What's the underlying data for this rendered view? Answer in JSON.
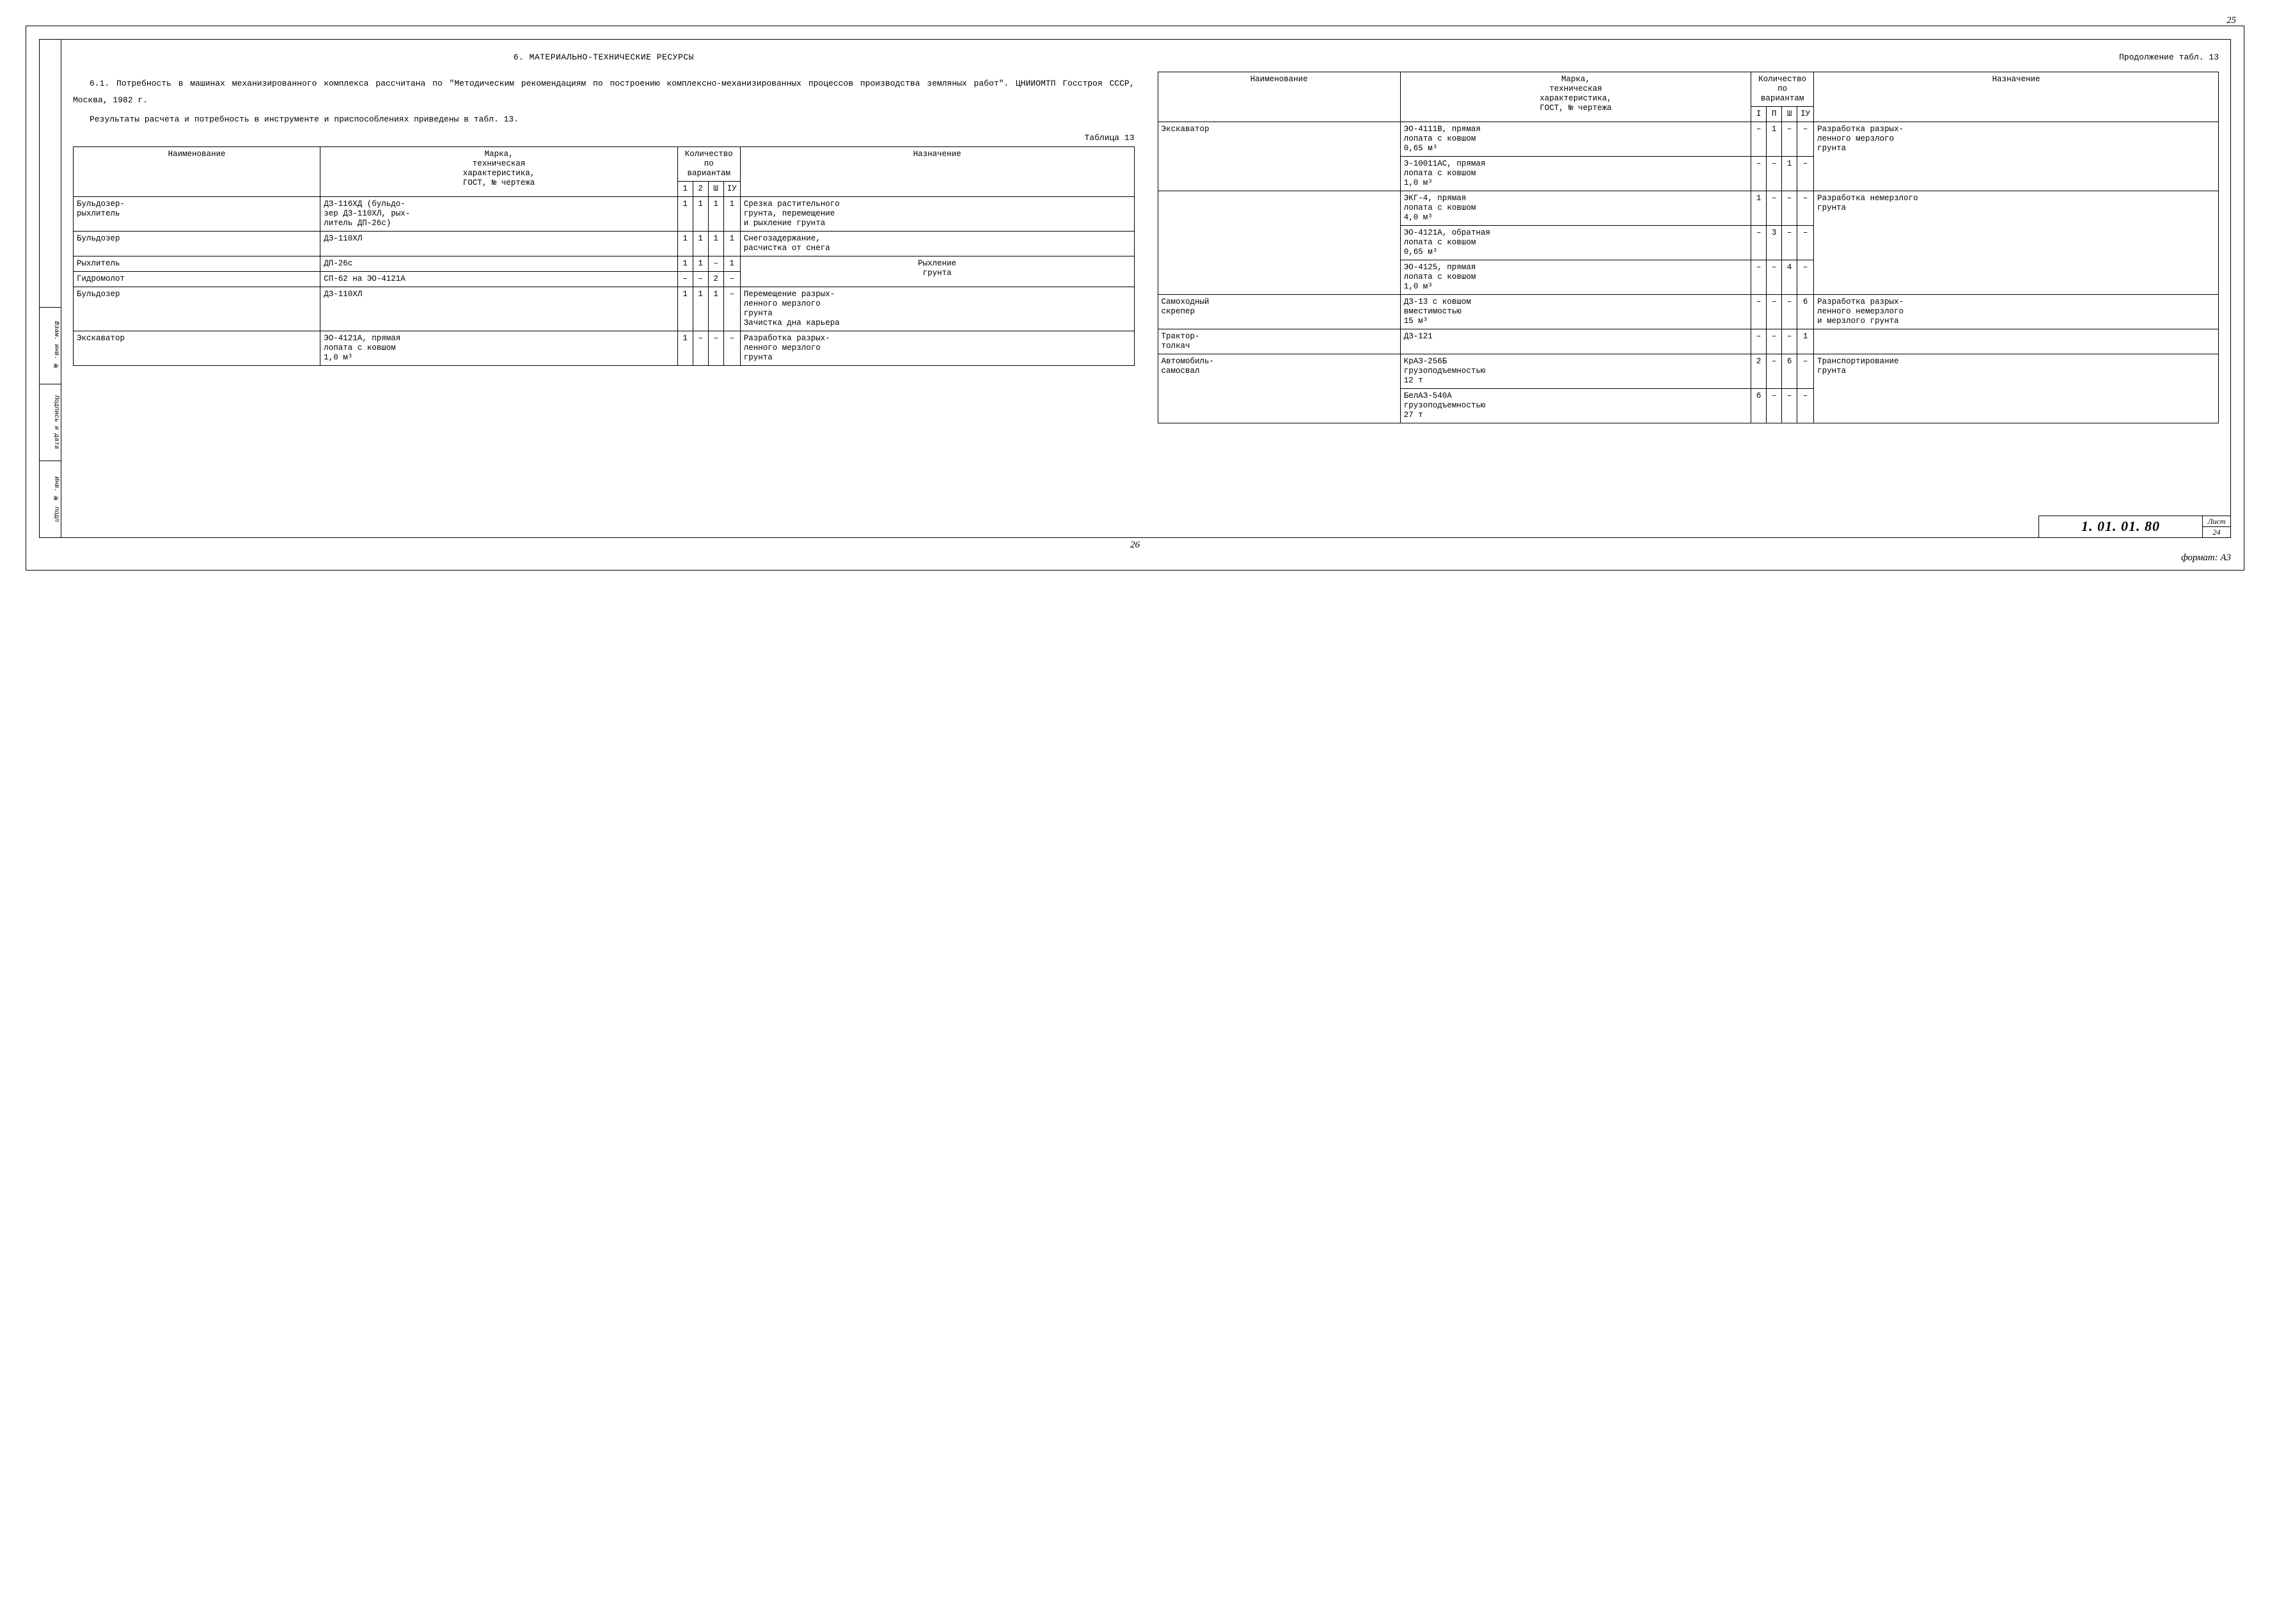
{
  "meta": {
    "page_top": "25",
    "page_bottom_center": "26",
    "format_label": "формат: А3",
    "doc_code": "1. 01. 01. 80",
    "sheet_label": "Лист",
    "sheet_num": "24"
  },
  "side_cells": [
    "Взам. инв. №",
    "Подпись и дата",
    "Инв. № подп"
  ],
  "left": {
    "section_title": "6. МАТЕРИАЛЬНО-ТЕХНИЧЕСКИЕ РЕСУРСЫ",
    "p1": "6.1. Потребность в машинах механизированного комплекса рассчитана по \"Методическим рекомендациям по построению комплексно-механизированных процессов производства земляных работ\". ЦНИИОМТП Госстроя СССР, Москва, 1982 г.",
    "p2": "Результаты расчета и потребность в инструменте и приспособлениях приведены в табл. 13.",
    "caption": "Таблица 13",
    "headers": {
      "name": "Наименование",
      "spec": "Марка,\nтехническая\nхарактеристика,\nГОСТ, № чертежа",
      "qty": "Количество\nпо вариантам",
      "v1": "1",
      "v2": "2",
      "v3": "Ш",
      "v4": "IУ",
      "purpose": "Назначение"
    },
    "rows": [
      {
        "name": "Бульдозер-\nрыхлитель",
        "spec": "ДЗ-116ХД (бульдо-\nзер ДЗ-110ХЛ, рых-\nлитель ДП-26с)",
        "v1": "1",
        "v2": "1",
        "v3": "1",
        "v4": "1",
        "purpose": "Срезка растительного\nгрунта, перемещение\nи рыхление грунта"
      },
      {
        "name": "Бульдозер",
        "spec": "ДЗ-110ХЛ",
        "v1": "1",
        "v2": "1",
        "v3": "1",
        "v4": "1",
        "purpose": "Снегозадержание,\nрасчистка от снега"
      },
      {
        "name": "Рыхлитель",
        "spec": "ДП-26с",
        "v1": "1",
        "v2": "1",
        "v3": "–",
        "v4": "1",
        "purpose": "Рыхление\nгрунта",
        "span": 2
      },
      {
        "name": "Гидромолот",
        "spec": "СП-62 на ЭО-4121А",
        "v1": "–",
        "v2": "–",
        "v3": "2",
        "v4": "–"
      },
      {
        "name": "Бульдозер",
        "spec": "ДЗ-110ХЛ",
        "v1": "1",
        "v2": "1",
        "v3": "1",
        "v4": "–",
        "purpose": "Перемещение разрых-\nленного мерзлого\nгрунта\nЗачистка дна карьера"
      },
      {
        "name": "Экскаватор",
        "spec": "ЭО-4121А, прямая\nлопата с ковшом\n1,0 м³",
        "v1": "1",
        "v2": "–",
        "v3": "–",
        "v4": "–",
        "purpose": "Разработка разрых-\nленного мерзлого\nгрунта"
      }
    ]
  },
  "right": {
    "caption_cont": "Продолжение табл. 13",
    "headers": {
      "name": "Наименование",
      "spec": "Марка,\nтехническая\nхарактеристика,\nГОСТ, № чертежа",
      "qty": "Количество\nпо вариантам",
      "v1": "I",
      "v2": "П",
      "v3": "Ш",
      "v4": "IУ",
      "purpose": "Назначение"
    },
    "rows": [
      {
        "name": "Экскаватор",
        "spec": "ЭО-4111В, прямая\nлопата с ковшом\n0,65 м³",
        "v1": "–",
        "v2": "1",
        "v3": "–",
        "v4": "–",
        "purpose": "Разработка разрых-\nленного мерзлого\nгрунта",
        "name_span": 2,
        "purpose_span": 2
      },
      {
        "spec": "Э-10011АС, прямая\nлопата с ковшом\n1,0 м³",
        "v1": "–",
        "v2": "–",
        "v3": "1",
        "v4": "–"
      },
      {
        "name": "",
        "spec": "ЭКГ-4, прямая\nлопата с ковшом\n4,0 м³",
        "v1": "1",
        "v2": "–",
        "v3": "–",
        "v4": "–",
        "purpose": "Разработка немерзлого\nгрунта",
        "name_span": 3,
        "purpose_span": 3
      },
      {
        "spec": "ЭО-4121А, обратная\nлопата с ковшом\n0,65 м³",
        "v1": "–",
        "v2": "3",
        "v3": "–",
        "v4": "–"
      },
      {
        "spec": "ЭО-4125, прямая\nлопата с ковшом\n1,0 м³",
        "v1": "–",
        "v2": "–",
        "v3": "4",
        "v4": "–"
      },
      {
        "name": "Самоходный\nскрепер",
        "spec": "ДЗ-13 с ковшом\nвместимостью\n15 м³",
        "v1": "–",
        "v2": "–",
        "v3": "–",
        "v4": "6",
        "purpose": "Разработка разрых-\nленного немерзлого\nи мерзлого грунта"
      },
      {
        "name": "Трактор-\nтолкач",
        "spec": "ДЗ-121",
        "v1": "–",
        "v2": "–",
        "v3": "–",
        "v4": "1",
        "purpose": ""
      },
      {
        "name": "Автомобиль-\nсамосвал",
        "spec": "КрАЗ-256Б\nгрузоподъемностью\n12 т",
        "v1": "2",
        "v2": "–",
        "v3": "6",
        "v4": "–",
        "purpose": "Транспортирование\nгрунта",
        "name_span": 2,
        "purpose_span": 2
      },
      {
        "spec": "БелАЗ-540А\nгрузоподъемностью\n27 т",
        "v1": "6",
        "v2": "–",
        "v3": "–",
        "v4": "–"
      }
    ]
  }
}
